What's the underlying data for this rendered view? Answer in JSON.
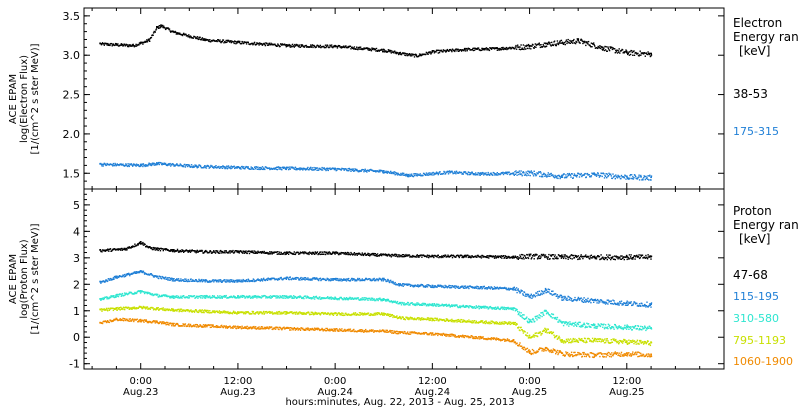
{
  "chart_data": [
    {
      "type": "scatter",
      "panel": "electron",
      "ylabel": [
        "ACE EPAM",
        "log(Electron Flux)",
        "[1/(cm^2 s ster MeV)]"
      ],
      "ylim": [
        1.3,
        3.6
      ],
      "yticks": [
        "1.5",
        "2.0",
        "2.5",
        "3.0",
        "3.5"
      ],
      "legend_title": [
        "Electron",
        "Energy ran",
        "[keV]"
      ],
      "series": [
        {
          "name": "38-53",
          "color": "#000000",
          "x": [
            -5,
            -3,
            -1,
            0,
            1,
            2,
            2.5,
            4,
            8,
            12,
            18,
            24,
            30,
            32,
            34,
            36,
            40,
            44,
            48,
            50,
            54,
            57,
            60,
            63
          ],
          "y": [
            3.15,
            3.14,
            3.13,
            3.16,
            3.2,
            3.36,
            3.38,
            3.3,
            3.2,
            3.17,
            3.13,
            3.12,
            3.07,
            3.03,
            3.0,
            3.05,
            3.08,
            3.09,
            3.12,
            3.15,
            3.19,
            3.1,
            3.04,
            3.02
          ]
        },
        {
          "name": "175-315",
          "color": "#1f7fd6",
          "x": [
            -5,
            0,
            2,
            6,
            12,
            18,
            24,
            30,
            33,
            38,
            42,
            48,
            52,
            56,
            60,
            63
          ],
          "y": [
            1.62,
            1.61,
            1.63,
            1.6,
            1.58,
            1.57,
            1.56,
            1.53,
            1.48,
            1.52,
            1.5,
            1.51,
            1.47,
            1.49,
            1.46,
            1.45
          ]
        }
      ]
    },
    {
      "type": "scatter",
      "panel": "proton",
      "ylabel": [
        "ACE EPAM",
        "log(Proton Flux)",
        "[1/(cm^2 s ster MeV)]"
      ],
      "ylim": [
        -1.2,
        5.6
      ],
      "yticks": [
        "-1",
        "0",
        "1",
        "2",
        "3",
        "4",
        "5"
      ],
      "legend_title": [
        "Proton",
        "Energy ran",
        "[keV]"
      ],
      "series": [
        {
          "name": "47-68",
          "color": "#000000",
          "x": [
            -5,
            -2,
            0,
            1,
            2,
            4,
            8,
            12,
            18,
            24,
            30,
            36,
            40,
            46,
            48,
            52,
            56,
            60,
            63
          ],
          "y": [
            3.3,
            3.35,
            3.6,
            3.4,
            3.35,
            3.3,
            3.25,
            3.25,
            3.2,
            3.2,
            3.12,
            3.08,
            3.08,
            3.05,
            3.08,
            3.05,
            3.05,
            3.05,
            3.05
          ]
        },
        {
          "name": "115-195",
          "color": "#1f7fd6",
          "x": [
            -5,
            -3,
            0,
            2,
            4,
            8,
            12,
            18,
            24,
            30,
            32,
            36,
            42,
            46,
            48,
            50,
            52,
            56,
            60,
            63
          ],
          "y": [
            2.1,
            2.3,
            2.5,
            2.3,
            2.2,
            2.15,
            2.15,
            2.25,
            2.2,
            2.2,
            2.0,
            1.95,
            1.9,
            1.85,
            1.55,
            1.8,
            1.5,
            1.4,
            1.3,
            1.25
          ]
        },
        {
          "name": "310-580",
          "color": "#2ee6d0",
          "x": [
            -5,
            -3,
            0,
            2,
            4,
            8,
            12,
            18,
            24,
            30,
            32,
            36,
            42,
            46,
            48,
            50,
            52,
            56,
            60,
            63
          ],
          "y": [
            1.45,
            1.6,
            1.75,
            1.6,
            1.55,
            1.55,
            1.55,
            1.55,
            1.5,
            1.45,
            1.3,
            1.25,
            1.15,
            1.1,
            0.6,
            1.0,
            0.55,
            0.45,
            0.4,
            0.35
          ]
        },
        {
          "name": "795-1193",
          "color": "#c8e000",
          "x": [
            -5,
            -3,
            0,
            2,
            4,
            8,
            12,
            18,
            24,
            30,
            32,
            36,
            42,
            46,
            48,
            50,
            52,
            56,
            60,
            63
          ],
          "y": [
            1.05,
            1.1,
            1.15,
            1.1,
            1.05,
            1.0,
            0.95,
            0.95,
            0.9,
            0.9,
            0.75,
            0.7,
            0.6,
            0.55,
            0.0,
            0.3,
            -0.1,
            -0.1,
            -0.15,
            -0.2
          ]
        },
        {
          "name": "1060-1900",
          "color": "#f08a00",
          "x": [
            -5,
            -3,
            0,
            2,
            4,
            8,
            12,
            18,
            24,
            30,
            32,
            36,
            42,
            46,
            48,
            50,
            52,
            56,
            60,
            63
          ],
          "y": [
            0.55,
            0.7,
            0.65,
            0.6,
            0.5,
            0.45,
            0.4,
            0.35,
            0.3,
            0.25,
            0.2,
            0.15,
            0.0,
            -0.1,
            -0.55,
            -0.4,
            -0.6,
            -0.65,
            -0.6,
            -0.65
          ]
        }
      ]
    }
  ],
  "xaxis": {
    "ticks": [
      {
        "x": 0,
        "time": "0:00",
        "date": "Aug.23"
      },
      {
        "x": 12,
        "time": "12:00",
        "date": "Aug.23"
      },
      {
        "x": 24,
        "time": "0:00",
        "date": "Aug.24"
      },
      {
        "x": 36,
        "time": "12:00",
        "date": "Aug.24"
      },
      {
        "x": 48,
        "time": "0:00",
        "date": "Aug.25"
      },
      {
        "x": 60,
        "time": "12:00",
        "date": "Aug.25"
      }
    ],
    "xlim": [
      -7,
      72
    ],
    "label": "hours:minutes, Aug. 22, 2013 - Aug. 25, 2013"
  }
}
